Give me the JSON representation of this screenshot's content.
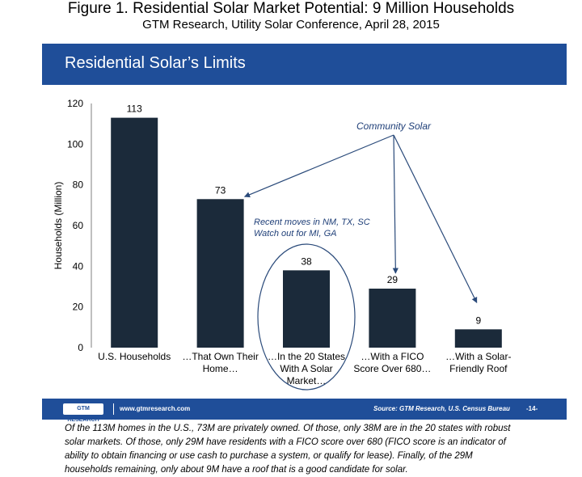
{
  "figure": {
    "title": "Figure 1. Residential Solar Market Potential: 9 Million Households",
    "subtitle": "GTM Research, Utility Solar Conference, April 28, 2015"
  },
  "slide": {
    "title": "Residential Solar’s Limits",
    "banner_color": "#1f4e99"
  },
  "chart_data": {
    "type": "bar",
    "categories": [
      [
        "U.S. Households"
      ],
      [
        "…That Own Their",
        "Home…"
      ],
      [
        "…In the 20 States",
        "With A Solar",
        "Market…"
      ],
      [
        "…With a FICO",
        "Score Over 680…"
      ],
      [
        "…With a Solar-",
        "Friendly Roof"
      ]
    ],
    "values": [
      113,
      73,
      38,
      29,
      9
    ],
    "value_labels": [
      "113",
      "73",
      "38",
      "29",
      "9"
    ],
    "ylabel": "Households (Million)",
    "ylim": [
      0,
      120
    ],
    "yticks": [
      0,
      20,
      40,
      60,
      80,
      100,
      120
    ],
    "bar_color": "#1b2a3a",
    "grid": false,
    "annotations": {
      "community": "Community Solar",
      "recent_line1": "Recent moves in NM, TX, SC",
      "recent_line2": "Watch out for MI, GA",
      "annotation_color": "#1f3f78"
    }
  },
  "footer": {
    "logo": "GTM RESEARCH",
    "website": "www.gtmresearch.com",
    "source": "Source: GTM Research, U.S. Census Bureau",
    "page": "-14-"
  },
  "caption": "Of the 113M homes in the U.S., 73M are privately owned. Of those, only 38M are in the 20 states with robust solar markets. Of those, only 29M have residents with a FICO score over 680 (FICO score is an indicator of ability to obtain financing or use cash to purchase a system, or qualify for lease). Finally, of the 29M households remaining, only about 9M have a roof that is a good candidate for solar."
}
